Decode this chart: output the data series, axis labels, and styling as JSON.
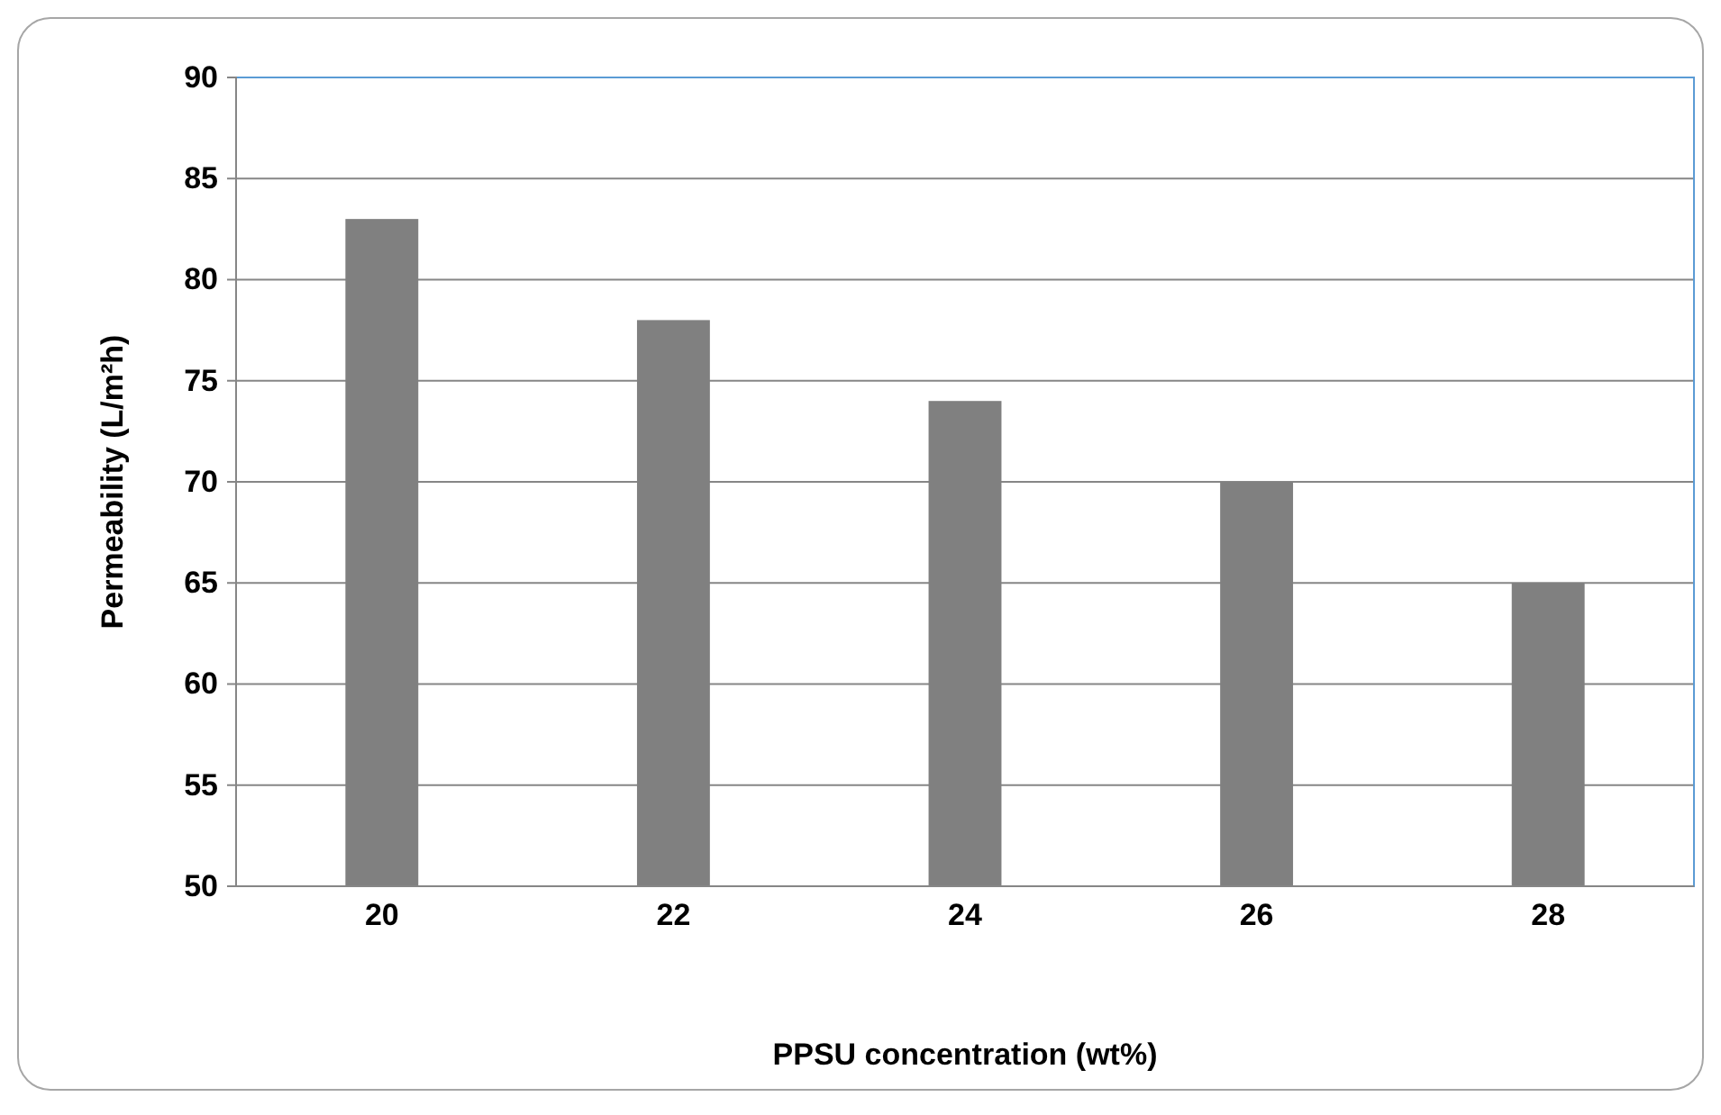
{
  "chart_data": {
    "type": "bar",
    "xlabel": "PPSU concentration (wt%)",
    "ylabel": "Permeability (L/m²h)",
    "categories": [
      "20",
      "22",
      "24",
      "26",
      "28"
    ],
    "values": [
      83,
      78,
      74,
      70,
      65
    ],
    "color": "#808080",
    "ylim": [
      50,
      90
    ],
    "yticks": [
      50,
      55,
      60,
      65,
      70,
      75,
      80,
      85,
      90
    ],
    "grid": "y"
  }
}
